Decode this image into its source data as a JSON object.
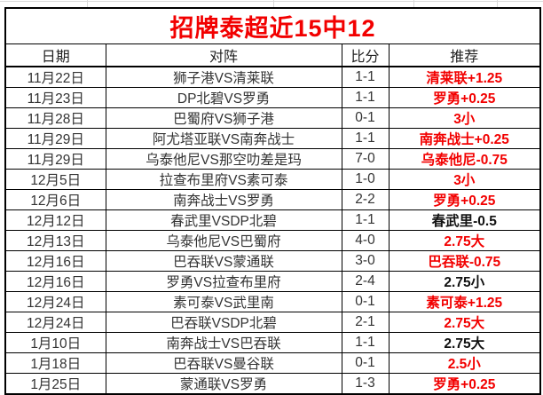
{
  "title": "招牌泰超近15中12",
  "colors": {
    "accent": "#f20000",
    "pick_black": "#111111",
    "body_text": "#333333",
    "border": "#000000",
    "gridline": "#d9d9d9"
  },
  "table": {
    "columns": [
      "日期",
      "对阵",
      "比分",
      "推荐"
    ],
    "rows": [
      {
        "date": "11月22日",
        "match": "狮子港VS清莱联",
        "score": "1-1",
        "pick": "清莱联+1.25",
        "pick_style": "red"
      },
      {
        "date": "11月23日",
        "match": "DP北碧VS罗勇",
        "score": "1-1",
        "pick": "罗勇+0.25",
        "pick_style": "red"
      },
      {
        "date": "11月28日",
        "match": "巴蜀府VS狮子港",
        "score": "0-1",
        "pick": "3小",
        "pick_style": "red"
      },
      {
        "date": "11月29日",
        "match": "阿尤塔亚联VS南奔战士",
        "score": "1-1",
        "pick": "南奔战士+0.25",
        "pick_style": "red"
      },
      {
        "date": "11月29日",
        "match": "乌泰他尼VS那空叻差是玛",
        "score": "7-0",
        "pick": "乌泰他尼-0.75",
        "pick_style": "red"
      },
      {
        "date": "12月5日",
        "match": "拉查布里府VS素可泰",
        "score": "1-0",
        "pick": "3小",
        "pick_style": "red"
      },
      {
        "date": "12月6日",
        "match": "南奔战士VS罗勇",
        "score": "2-2",
        "pick": "罗勇+0.25",
        "pick_style": "red"
      },
      {
        "date": "12月12日",
        "match": "春武里VSDP北碧",
        "score": "1-1",
        "pick": "春武里-0.5",
        "pick_style": "black"
      },
      {
        "date": "12月13日",
        "match": "乌泰他尼VS巴蜀府",
        "score": "4-0",
        "pick": "2.75大",
        "pick_style": "red"
      },
      {
        "date": "12月16日",
        "match": "巴吞联VS蒙通联",
        "score": "3-0",
        "pick": "巴吞联-0.75",
        "pick_style": "red"
      },
      {
        "date": "12月16日",
        "match": "罗勇VS拉查布里府",
        "score": "2-4",
        "pick": "2.75小",
        "pick_style": "black"
      },
      {
        "date": "12月24日",
        "match": "素可泰VS武里南",
        "score": "0-1",
        "pick": "素可泰+1.25",
        "pick_style": "red"
      },
      {
        "date": "12月24日",
        "match": "巴吞联VSDP北碧",
        "score": "2-1",
        "pick": "2.75大",
        "pick_style": "red"
      },
      {
        "date": "1月10日",
        "match": "南奔战士VS巴吞联",
        "score": "1-1",
        "pick": "2.75大",
        "pick_style": "black"
      },
      {
        "date": "1月18日",
        "match": "巴吞联VS曼谷联",
        "score": "0-1",
        "pick": "2.5小",
        "pick_style": "red"
      },
      {
        "date": "1月25日",
        "match": "蒙通联VS罗勇",
        "score": "1-3",
        "pick": "罗勇+0.25",
        "pick_style": "red"
      }
    ]
  }
}
